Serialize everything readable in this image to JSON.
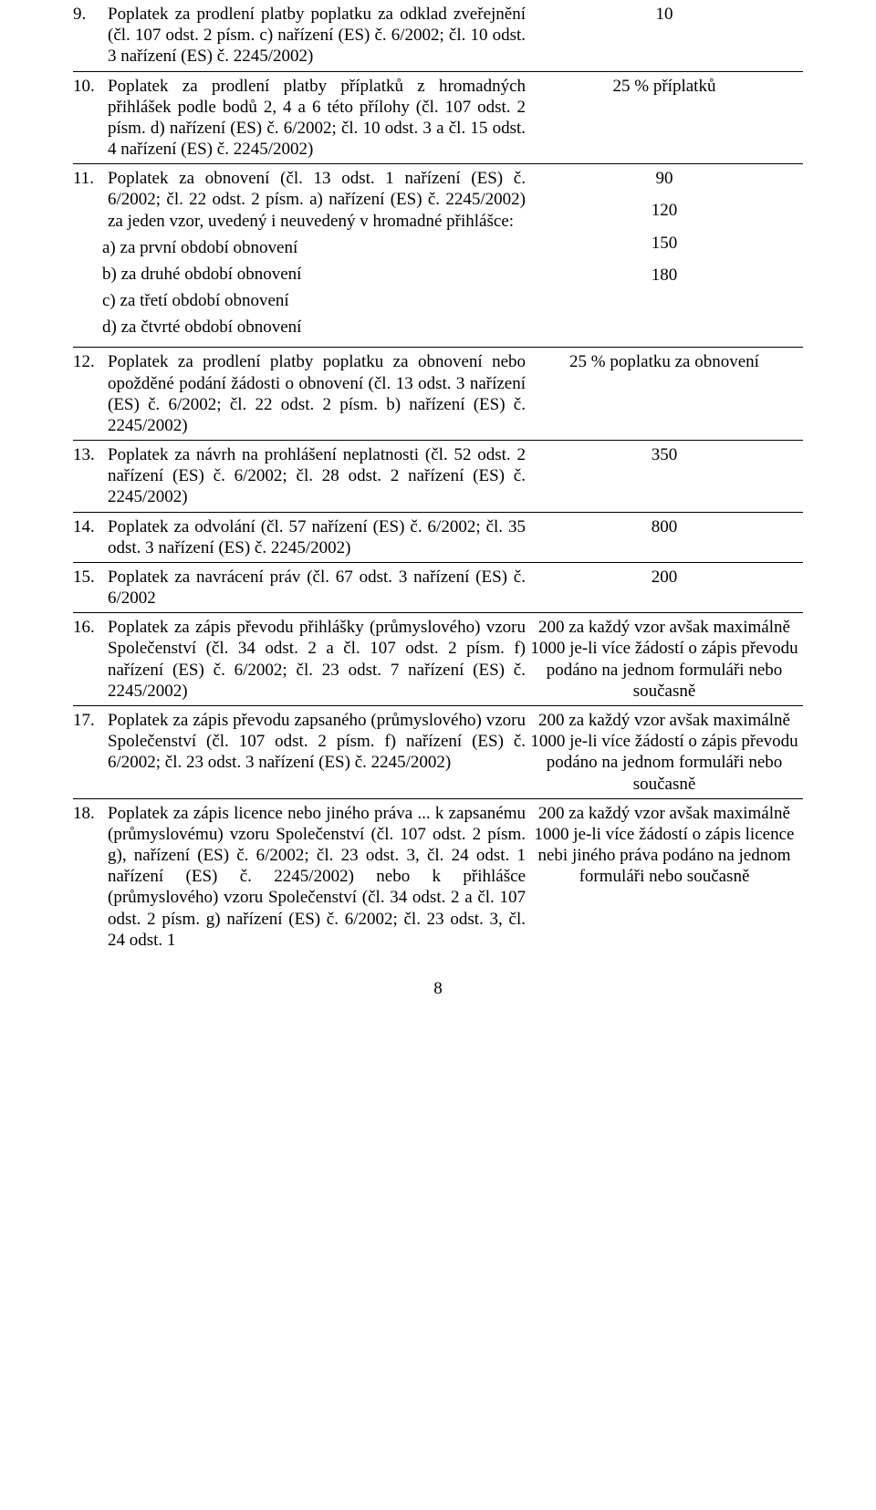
{
  "rows": [
    {
      "num": "9.",
      "text": "Poplatek za prodlení platby poplatku za odklad zveřejnění (čl. 107 odst. 2 písm. c) nařízení (ES) č. 6/2002; čl. 10 odst. 3 nařízení (ES) č. 2245/2002)",
      "value": "10"
    },
    {
      "num": "10.",
      "text": "Poplatek za prodlení platby příplatků z hromadných přihlášek podle bodů 2, 4 a 6 této přílohy (čl. 107 odst. 2 písm. d) nařízení (ES) č. 6/2002; čl. 10 odst. 3 a čl. 15 odst. 4 nařízení (ES) č. 2245/2002)",
      "value": "25 % příplatků"
    },
    {
      "num": "11.",
      "text": "Poplatek za obnovení (čl. 13 odst. 1 nařízení (ES) č. 6/2002; čl. 22 odst. 2 písm. a) nařízení (ES) č. 2245/2002) za jeden vzor, uvedený i neuvedený v hromadné přihlášce:",
      "subs": [
        {
          "label": "a) za první období obnovení",
          "value": "90"
        },
        {
          "label": "b) za druhé období obnovení",
          "value": "120"
        },
        {
          "label": "c) za třetí období obnovení",
          "value": "150"
        },
        {
          "label": "d) za čtvrté období obnovení",
          "value": "180"
        }
      ]
    },
    {
      "num": "12.",
      "text": "Poplatek za prodlení platby poplatku za obnovení nebo opožděné podání žádosti o obnovení (čl. 13 odst. 3 nařízení (ES) č. 6/2002; čl. 22 odst. 2 písm. b) nařízení (ES) č. 2245/2002)",
      "value": "25 % poplatku za obnovení"
    },
    {
      "num": "13.",
      "text": "Poplatek za návrh na prohlášení neplatnosti (čl. 52 odst. 2 nařízení (ES) č. 6/2002; čl. 28 odst. 2 nařízení (ES) č. 2245/2002)",
      "value": "350"
    },
    {
      "num": "14.",
      "text": "Poplatek za odvolání (čl. 57 nařízení (ES) č. 6/2002; čl. 35 odst. 3 nařízení (ES) č. 2245/2002)",
      "value": "800"
    },
    {
      "num": "15.",
      "text": "Poplatek za navrácení práv (čl. 67 odst. 3 nařízení (ES) č. 6/2002",
      "value": "200"
    },
    {
      "num": "16.",
      "text": "Poplatek za zápis převodu přihlášky (průmyslového) vzoru Společenství (čl. 34 odst. 2 a čl. 107 odst. 2 písm. f) nařízení (ES) č. 6/2002; čl. 23 odst. 7 nařízení (ES) č. 2245/2002)",
      "value": "200 za každý vzor avšak maximálně 1000 je-li více žádostí o zápis převodu podáno na jednom formuláři nebo současně"
    },
    {
      "num": "17.",
      "text": "Poplatek za zápis převodu zapsaného (průmyslového) vzoru Společenství (čl. 107 odst. 2 písm. f) nařízení (ES) č. 6/2002; čl. 23 odst. 3 nařízení (ES) č. 2245/2002)",
      "value": "200 za každý vzor avšak maximálně 1000 je-li více žádostí o zápis převodu podáno na jednom formuláři nebo současně"
    },
    {
      "num": "18.",
      "text": "Poplatek za zápis licence nebo jiného práva ... k zapsanému (průmyslovému) vzoru Společenství (čl. 107 odst. 2 písm. g), nařízení (ES) č. 6/2002; čl. 23 odst. 3, čl. 24 odst. 1 nařízení (ES) č. 2245/2002) nebo k přihlášce (průmyslového) vzoru Společenství (čl. 34 odst. 2 a čl. 107 odst. 2 písm. g) nařízení (ES) č. 6/2002; čl. 23 odst. 3, čl. 24 odst. 1",
      "value": "200 za každý vzor avšak maximálně 1000 je-li více žádostí o zápis licence nebi jiného práva podáno na jednom formuláři nebo současně"
    }
  ],
  "pageNumber": "8"
}
